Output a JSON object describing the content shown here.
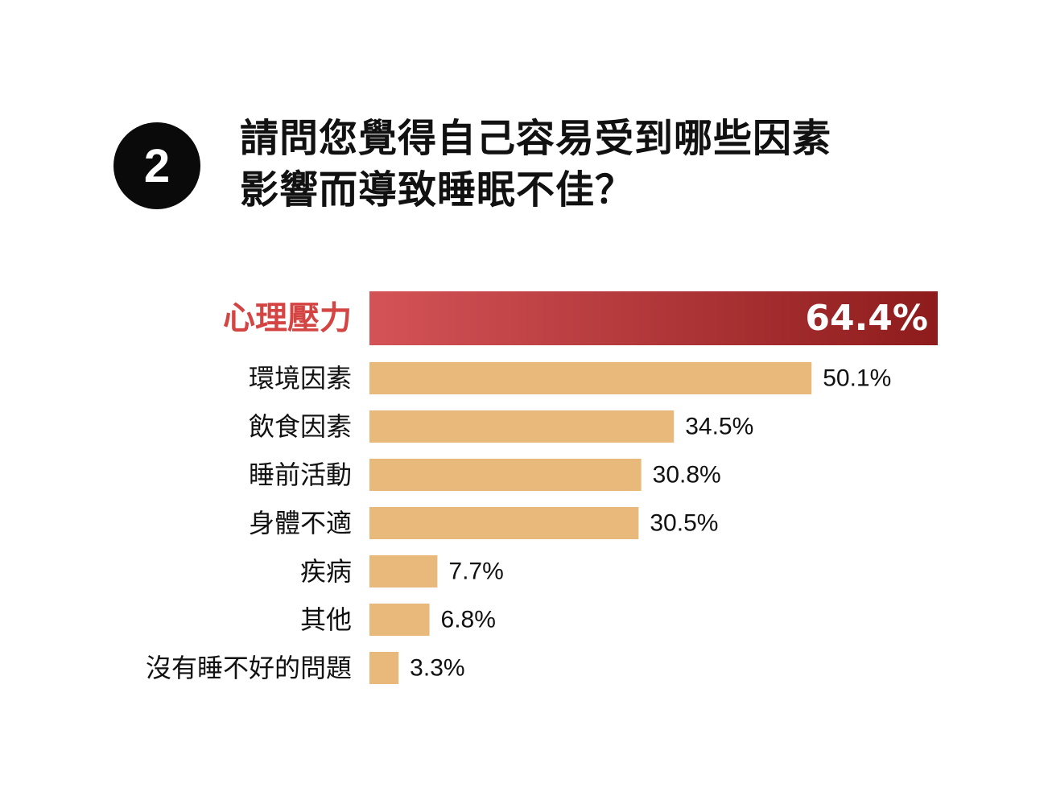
{
  "question": {
    "number": "2",
    "title_line1": "請問您覺得自己容易受到哪些因素",
    "title_line2": "影響而導致睡眠不佳？"
  },
  "chart_data": {
    "type": "bar",
    "orientation": "horizontal",
    "categories": [
      "心理壓力",
      "環境因素",
      "飲食因素",
      "睡前活動",
      "身體不適",
      "疾病",
      "其他",
      "沒有睡不好的問題"
    ],
    "values": [
      64.4,
      50.1,
      34.5,
      30.8,
      30.5,
      7.7,
      6.8,
      3.3
    ],
    "value_labels": [
      "64.4%",
      "50.1%",
      "34.5%",
      "30.8%",
      "30.5%",
      "7.7%",
      "6.8%",
      "3.3%"
    ],
    "highlight_index": 0,
    "colors": {
      "bar": "#e8b97a",
      "highlight_start": "#d45357",
      "highlight_end": "#8e1c1c",
      "highlight_label": "#d44443"
    },
    "xlim": [
      0,
      64.4
    ]
  }
}
